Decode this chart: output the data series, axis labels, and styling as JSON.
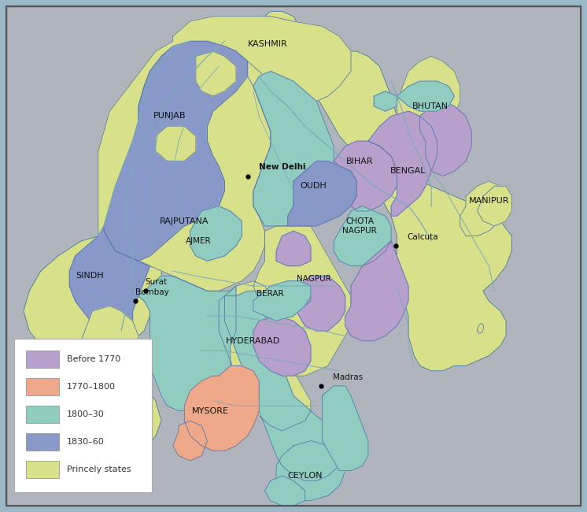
{
  "background_color": "#b0c8d8",
  "ocean_color": "#a8c4d4",
  "gray_bg": "#b8bcc4",
  "colors": {
    "before_1770": "#b8a0cc",
    "1770_1800": "#f0a88a",
    "1800_30": "#90ccc0",
    "1830_60": "#8898c8",
    "princely": "#d8e08a"
  },
  "legend": [
    {
      "label": "Before 1770",
      "color": "#b8a0cc"
    },
    {
      "label": "1770–1800",
      "color": "#f0a88a"
    },
    {
      "label": "1800–30",
      "color": "#90ccc0"
    },
    {
      "label": "1830–60",
      "color": "#8898c8"
    },
    {
      "label": "Princely states",
      "color": "#d8e08a"
    }
  ],
  "border_ec": "#6688aa",
  "region_ec": "#5577aa",
  "river_color": "#7aaabb",
  "figsize": [
    7.46,
    6.5
  ],
  "dpi": 100
}
